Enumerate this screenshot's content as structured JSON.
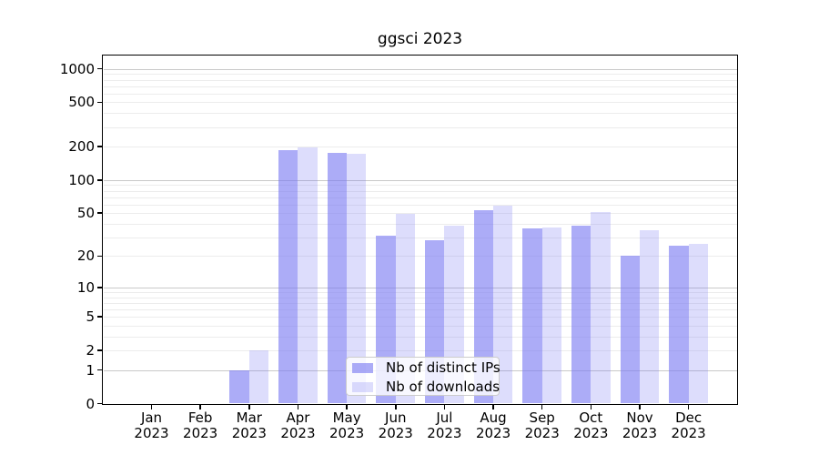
{
  "page": {
    "background": "#ffffff"
  },
  "chart_data": {
    "type": "bar",
    "title": "ggsci 2023",
    "x_tick_year": "2023",
    "categories": [
      "Jan",
      "Feb",
      "Mar",
      "Apr",
      "May",
      "Jun",
      "Jul",
      "Aug",
      "Sep",
      "Oct",
      "Nov",
      "Dec"
    ],
    "series": [
      {
        "name": "Nb of distinct IPs",
        "color": "#7979f2",
        "alpha": 0.62,
        "values": [
          0,
          0,
          1,
          187,
          176,
          31,
          28,
          53,
          36,
          38,
          20,
          25
        ]
      },
      {
        "name": "Nb of downloads",
        "color": "#7979f2",
        "alpha": 0.25,
        "values": [
          0,
          0,
          2,
          196,
          174,
          49,
          38,
          58,
          37,
          51,
          35,
          26
        ]
      }
    ],
    "yscale": "log10(1+v)",
    "ylim": [
      0,
      1318
    ],
    "yticks": [
      0,
      1,
      2,
      5,
      10,
      20,
      50,
      100,
      200,
      500,
      1000
    ],
    "grid_major_at": [
      1,
      10,
      100,
      1000
    ],
    "grid_minor_at": [
      2,
      3,
      4,
      5,
      6,
      7,
      8,
      9,
      20,
      30,
      40,
      50,
      60,
      70,
      80,
      90,
      200,
      300,
      400,
      500,
      600,
      700,
      800,
      900
    ],
    "grid": "horizontal",
    "legend_position": "lower-center"
  },
  "colors": {
    "bar_fill_base": "#7979f2",
    "grid_major": "#c9c9c9",
    "grid_minor": "#ececec",
    "axis": "#000000",
    "text": "#000000",
    "legend_border": "#cccccc"
  }
}
